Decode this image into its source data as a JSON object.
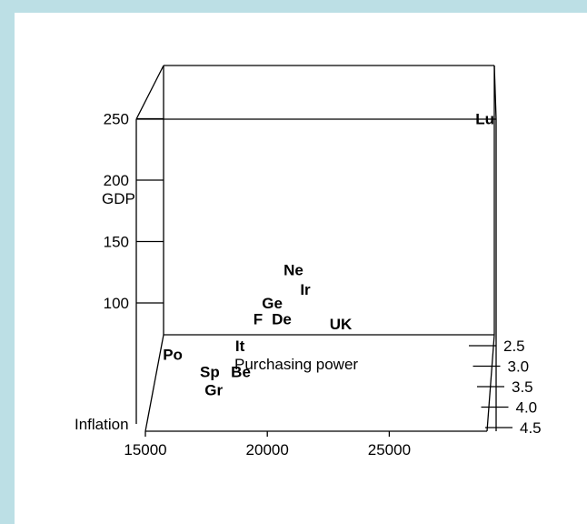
{
  "chart_data": {
    "type": "scatter3d",
    "title": "",
    "axes": {
      "x": {
        "label": "Purchasing power",
        "range": [
          15000,
          29000
        ],
        "ticks": [
          "15000",
          "20000",
          "25000"
        ]
      },
      "y": {
        "label": "Inflation",
        "range": [
          2.5,
          4.5
        ],
        "ticks": [
          "2.5",
          "3.0",
          "3.5",
          "4.0",
          "4.5"
        ]
      },
      "z": {
        "label": "GDP",
        "range": [
          60,
          260
        ],
        "ticks": [
          "100",
          "150",
          "200",
          "250"
        ]
      }
    },
    "points": [
      {
        "label": "Lu",
        "purchasing_power": 28600,
        "inflation": 2.5,
        "gdp": 250
      },
      {
        "label": "Ne",
        "purchasing_power": 20500,
        "inflation": 2.5,
        "gdp": 127
      },
      {
        "label": "Ir",
        "purchasing_power": 21000,
        "inflation": 2.5,
        "gdp": 111
      },
      {
        "label": "Ge",
        "purchasing_power": 19600,
        "inflation": 2.5,
        "gdp": 100
      },
      {
        "label": "F",
        "purchasing_power": 19000,
        "inflation": 2.5,
        "gdp": 87
      },
      {
        "label": "De",
        "purchasing_power": 20000,
        "inflation": 2.5,
        "gdp": 87
      },
      {
        "label": "UK",
        "purchasing_power": 22500,
        "inflation": 2.5,
        "gdp": 83
      },
      {
        "label": "It",
        "purchasing_power": 18300,
        "inflation": 2.7,
        "gdp": 71
      },
      {
        "label": "Po",
        "purchasing_power": 15500,
        "inflation": 2.8,
        "gdp": 67
      },
      {
        "label": "Sp",
        "purchasing_power": 17200,
        "inflation": 3.2,
        "gdp": 65
      },
      {
        "label": "Be",
        "purchasing_power": 18500,
        "inflation": 3.2,
        "gdp": 65
      },
      {
        "label": "Gr",
        "purchasing_power": 17500,
        "inflation": 3.6,
        "gdp": 62
      }
    ]
  }
}
